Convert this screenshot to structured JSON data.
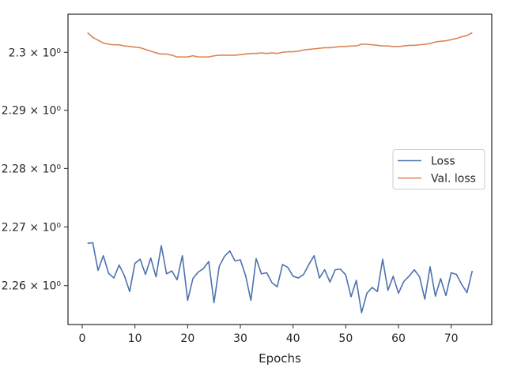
{
  "chart_data": {
    "type": "line",
    "title": "",
    "xlabel": "Epochs",
    "ylabel": "",
    "xlim": [
      -2.7,
      77.7
    ],
    "ylim": [
      2.2534,
      2.3066
    ],
    "yscale": "log",
    "grid": false,
    "legend_position": "center-right",
    "x_ticks": [
      0,
      10,
      20,
      30,
      40,
      50,
      60,
      70
    ],
    "x_tick_labels": [
      "0",
      "10",
      "20",
      "30",
      "40",
      "50",
      "60",
      "70"
    ],
    "y_ticks": [
      2.26,
      2.27,
      2.28,
      2.29,
      2.3
    ],
    "y_tick_labels": [
      "2.26 × 10⁰",
      "2.27 × 10⁰",
      "2.28 × 10⁰",
      "2.29 × 10⁰",
      "2.3 × 10⁰"
    ],
    "x": [
      1,
      2,
      3,
      4,
      5,
      6,
      7,
      8,
      9,
      10,
      11,
      12,
      13,
      14,
      15,
      16,
      17,
      18,
      19,
      20,
      21,
      22,
      23,
      24,
      25,
      26,
      27,
      28,
      29,
      30,
      31,
      32,
      33,
      34,
      35,
      36,
      37,
      38,
      39,
      40,
      41,
      42,
      43,
      44,
      45,
      46,
      47,
      48,
      49,
      50,
      51,
      52,
      53,
      54,
      55,
      56,
      57,
      58,
      59,
      60,
      61,
      62,
      63,
      64,
      65,
      66,
      67,
      68,
      69,
      70,
      71,
      72,
      73,
      74
    ],
    "series": [
      {
        "name": "Loss",
        "color": "#4c72b0",
        "values": [
          2.2672,
          2.2673,
          2.2626,
          2.2651,
          2.2621,
          2.2613,
          2.2635,
          2.2617,
          2.259,
          2.2638,
          2.2645,
          2.2619,
          2.2647,
          2.2615,
          2.2668,
          2.262,
          2.2625,
          2.261,
          2.2651,
          2.2575,
          2.2612,
          2.2623,
          2.2629,
          2.2641,
          2.2571,
          2.2633,
          2.265,
          2.2659,
          2.2642,
          2.2644,
          2.2617,
          2.2575,
          2.2646,
          2.262,
          2.2622,
          2.2605,
          2.2598,
          2.2636,
          2.2631,
          2.2616,
          2.2613,
          2.2619,
          2.2636,
          2.2651,
          2.2613,
          2.2627,
          2.2606,
          2.2627,
          2.2628,
          2.2618,
          2.2581,
          2.2609,
          2.2554,
          2.2587,
          2.2597,
          2.259,
          2.2645,
          2.2592,
          2.2616,
          2.2587,
          2.2607,
          2.2616,
          2.2627,
          2.2615,
          2.2577,
          2.2632,
          2.2582,
          2.2612,
          2.2583,
          2.2622,
          2.2619,
          2.2602,
          2.2588,
          2.2625
        ]
      },
      {
        "name": "Val. loss",
        "color": "#dd8452",
        "values": [
          2.3034,
          2.3026,
          2.3021,
          2.3016,
          2.3014,
          2.3013,
          2.3013,
          2.3011,
          2.301,
          2.3009,
          2.3008,
          2.3005,
          2.3002,
          2.2999,
          2.2997,
          2.2997,
          2.2995,
          2.2992,
          2.2992,
          2.2992,
          2.2994,
          2.2992,
          2.2992,
          2.2992,
          2.2994,
          2.2995,
          2.2995,
          2.2995,
          2.2995,
          2.2996,
          2.2997,
          2.2998,
          2.2998,
          2.2999,
          2.2998,
          2.2999,
          2.2998,
          2.3,
          2.3001,
          2.3001,
          2.3002,
          2.3004,
          2.3005,
          2.3006,
          2.3007,
          2.3008,
          2.3008,
          2.3009,
          2.301,
          2.301,
          2.3011,
          2.3011,
          2.3014,
          2.3014,
          2.3013,
          2.3012,
          2.3011,
          2.3011,
          2.301,
          2.301,
          2.3011,
          2.3012,
          2.3012,
          2.3013,
          2.3014,
          2.3015,
          2.3018,
          2.3019,
          2.302,
          2.3022,
          2.3024,
          2.3027,
          2.3029,
          2.3034
        ]
      }
    ]
  }
}
